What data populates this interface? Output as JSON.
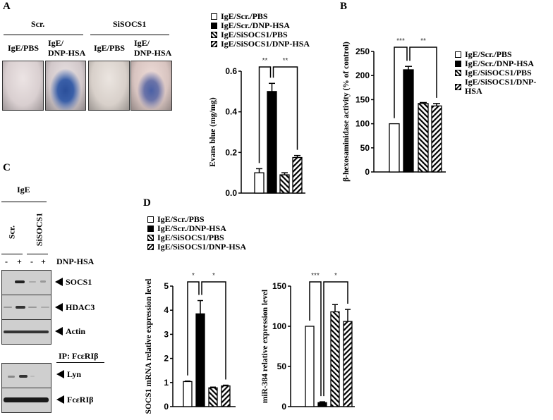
{
  "panel_labels": {
    "a": "A",
    "b": "B",
    "c": "C",
    "d": "D"
  },
  "legend": [
    "IgE/Scr./PBS",
    "IgE/Scr./DNP-HSA",
    "IgE/SiSOCS1/PBS",
    "IgE/SiSOCS1/DNP-HSA"
  ],
  "bar_fills": [
    "white",
    "black",
    "hatch-back",
    "hatch-forward"
  ],
  "panel_a": {
    "group_headers": [
      "Scr.",
      "SiSOCS1"
    ],
    "sub_labels": [
      "IgE/PBS",
      "IgE/\nDNP-HSA",
      "IgE/PBS",
      "IgE/\nDNP-HSA"
    ],
    "ear_dye": [
      "none",
      "strong blue",
      "none",
      "moderate blue"
    ]
  },
  "panel_c": {
    "treatment_header": "IgE",
    "lanes_groups": [
      "Scr.",
      "SiSOCS1"
    ],
    "dnp_signs": [
      "-",
      "+",
      "-",
      "+"
    ],
    "dnp_label": "DNP-HSA",
    "blots": [
      "SOCS1",
      "HDAC3",
      "Actin"
    ],
    "ip_label": "IP: FcεRIβ",
    "ip_blots": [
      "Lyn",
      "FcεRIβ"
    ]
  },
  "chart_data": [
    {
      "id": "evans",
      "type": "bar",
      "categories": [
        "IgE/Scr./PBS",
        "IgE/Scr./DNP-HSA",
        "IgE/SiSOCS1/PBS",
        "IgE/SiSOCS1/DNP-HSA"
      ],
      "values": [
        0.1,
        0.5,
        0.09,
        0.175
      ],
      "errors": [
        0.02,
        0.04,
        0.01,
        0.01
      ],
      "ylabel": "Evans blue (mg/mg)",
      "ylim": [
        0,
        0.6
      ],
      "yticks": [
        "0.0",
        "0.2",
        "0.4",
        "0.6"
      ],
      "ytick_values": [
        0,
        0.2,
        0.4,
        0.6
      ],
      "annotations": [
        {
          "from": 0,
          "to": 1,
          "label": "**"
        },
        {
          "from": 1,
          "to": 3,
          "label": "**"
        }
      ]
    },
    {
      "id": "hex",
      "type": "bar",
      "categories": [
        "IgE/Scr./PBS",
        "IgE/Scr./DNP-HSA",
        "IgE/SiSOCS1/PBS",
        "IgE/SiSOCS1/DNP-HSA"
      ],
      "values": [
        100,
        212,
        142,
        137
      ],
      "errors": [
        0,
        7,
        2,
        5
      ],
      "ylabel": "β-hexosaminidase activity (% of control)",
      "ylim": [
        0,
        250
      ],
      "yticks": [
        "0",
        "50",
        "100",
        "150",
        "200",
        "250"
      ],
      "ytick_values": [
        0,
        50,
        100,
        150,
        200,
        250
      ],
      "annotations": [
        {
          "from": 0,
          "to": 1,
          "label": "***"
        },
        {
          "from": 1,
          "to": 3,
          "label": "**"
        }
      ]
    },
    {
      "id": "socs1",
      "type": "bar",
      "categories": [
        "IgE/Scr./PBS",
        "IgE/Scr./DNP-HSA",
        "IgE/SiSOCS1/PBS",
        "IgE/SiSOCS1/DNP-HSA"
      ],
      "values": [
        1.04,
        3.85,
        0.78,
        0.86
      ],
      "errors": [
        0.02,
        0.55,
        0.03,
        0.03
      ],
      "ylabel": "SOCS1 mRNA relative expression level",
      "ylim": [
        0,
        5
      ],
      "yticks": [
        "0",
        "1",
        "2",
        "3",
        "4",
        "5"
      ],
      "ytick_values": [
        0,
        1,
        2,
        3,
        4,
        5
      ],
      "annotations": [
        {
          "from": 0,
          "to": 1,
          "label": "*"
        },
        {
          "from": 1,
          "to": 3,
          "label": "*"
        }
      ]
    },
    {
      "id": "mir",
      "type": "bar",
      "categories": [
        "IgE/Scr./PBS",
        "IgE/Scr./DNP-HSA",
        "IgE/SiSOCS1/PBS",
        "IgE/SiSOCS1/DNP-HSA"
      ],
      "values": [
        100,
        5,
        118,
        106
      ],
      "errors": [
        0,
        1,
        9,
        15
      ],
      "ylabel": "miR-384 relative expression level",
      "ylim": [
        0,
        150
      ],
      "yticks": [
        "0",
        "50",
        "100",
        "150"
      ],
      "ytick_values": [
        0,
        50,
        100,
        150
      ],
      "annotations": [
        {
          "from": 0,
          "to": 1,
          "label": "***"
        },
        {
          "from": 1,
          "to": 3,
          "label": "*"
        }
      ]
    }
  ]
}
